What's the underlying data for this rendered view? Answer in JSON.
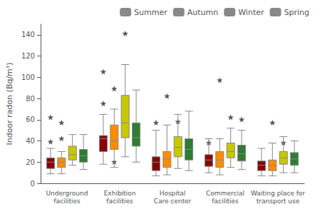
{
  "chart_data": {
    "type": "boxplot",
    "ylabel": "Indoor radon (Bq/m³)",
    "categories": [
      "Underground\nfacilities",
      "Exhibition\nfacilities",
      "Hospital\nCare center",
      "Commercial\nfacilities",
      "Waiting place for\ntransport use"
    ],
    "series": [
      {
        "name": "Summer",
        "color": "#8B0000",
        "values": [
          [
            9,
            14,
            20,
            24,
            33
          ],
          [
            18,
            30,
            42,
            45,
            65
          ],
          [
            7,
            12,
            20,
            25,
            50
          ],
          [
            10,
            16,
            22,
            27,
            42
          ],
          [
            7,
            12,
            17,
            21,
            33
          ]
        ],
        "fliers": [
          [
            39,
            62
          ],
          [
            75,
            105
          ],
          [
            57
          ],
          [
            38
          ],
          []
        ]
      },
      {
        "name": "Autumn",
        "color": "#FF8C00",
        "values": [
          [
            9,
            15,
            20,
            24,
            30
          ],
          [
            15,
            32,
            40,
            55,
            70
          ],
          [
            8,
            15,
            23,
            30,
            55
          ],
          [
            8,
            15,
            22,
            30,
            42
          ],
          [
            7,
            12,
            17,
            22,
            38
          ]
        ],
        "fliers": [
          [
            42,
            57
          ],
          [
            20,
            89
          ],
          [
            82
          ],
          [
            97
          ],
          [
            57
          ]
        ]
      },
      {
        "name": "Winter",
        "color": "#C8C800",
        "values": [
          [
            17,
            22,
            27,
            35,
            46
          ],
          [
            25,
            43,
            57,
            83,
            112
          ],
          [
            14,
            25,
            34,
            44,
            65
          ],
          [
            15,
            24,
            30,
            38,
            52
          ],
          [
            10,
            18,
            24,
            30,
            44
          ]
        ],
        "fliers": [
          [],
          [
            141
          ],
          [
            58
          ],
          [
            62
          ],
          [
            38
          ]
        ]
      },
      {
        "name": "Spring",
        "color": "#2E7D32",
        "values": [
          [
            13,
            20,
            26,
            32,
            46
          ],
          [
            20,
            35,
            43,
            57,
            88
          ],
          [
            12,
            22,
            32,
            42,
            68
          ],
          [
            13,
            21,
            28,
            36,
            50
          ],
          [
            10,
            17,
            23,
            29,
            40
          ]
        ],
        "fliers": [
          [],
          [],
          [],
          [
            60
          ],
          []
        ]
      }
    ],
    "ylim": [
      0,
      150
    ],
    "yticks": [
      0,
      20,
      40,
      60,
      80,
      100,
      120,
      140
    ],
    "grid": false,
    "legend": "upper right",
    "marker": "star"
  }
}
